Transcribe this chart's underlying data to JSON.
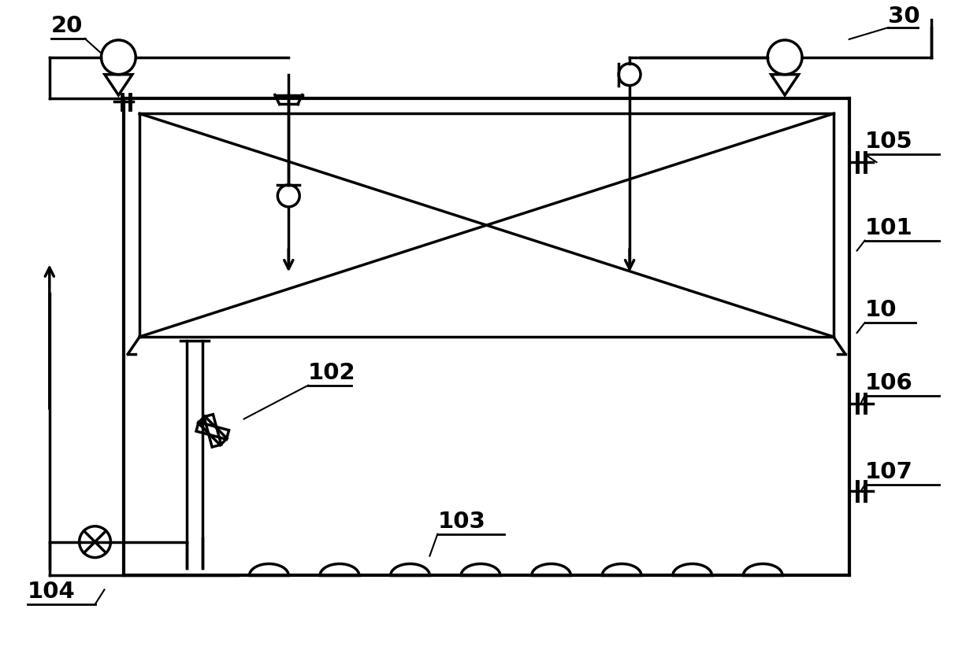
{
  "bg_color": "#ffffff",
  "lc": "#000000",
  "lw": 2.5,
  "fig_w": 12.4,
  "fig_h": 8.21,
  "dpi": 100
}
